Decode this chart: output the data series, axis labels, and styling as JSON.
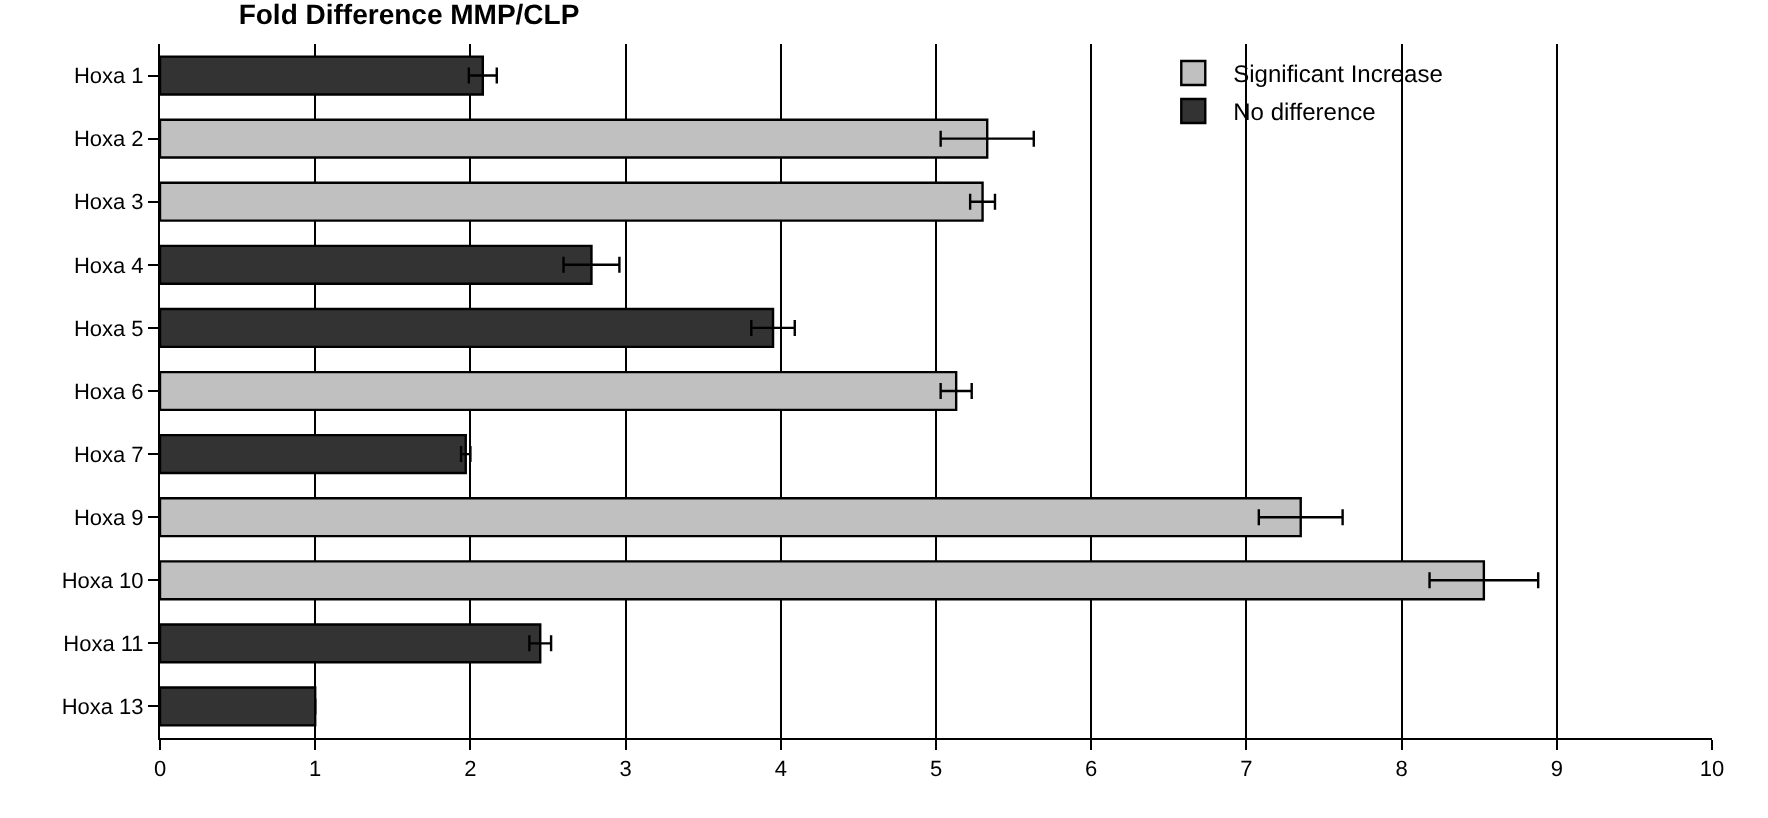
{
  "chart_data": {
    "type": "bar",
    "orientation": "horizontal",
    "title": "Fold Difference MMP/CLP",
    "categories": [
      "Hoxa 1",
      "Hoxa 2",
      "Hoxa 3",
      "Hoxa 4",
      "Hoxa 5",
      "Hoxa 6",
      "Hoxa 7",
      "Hoxa 9",
      "Hoxa 10",
      "Hoxa 11",
      "Hoxa 13"
    ],
    "series": [
      {
        "name": "Significant Increase",
        "color": "#c0c0c0",
        "values": [
          null,
          5.33,
          5.3,
          null,
          null,
          5.13,
          null,
          7.35,
          8.53,
          null,
          null
        ],
        "errors": [
          null,
          0.3,
          0.08,
          null,
          null,
          0.1,
          null,
          0.27,
          0.35,
          null,
          null
        ]
      },
      {
        "name": "No difference",
        "color": "#333333",
        "values": [
          2.08,
          null,
          null,
          2.78,
          3.95,
          null,
          1.97,
          null,
          null,
          2.45,
          1.0
        ],
        "errors": [
          0.09,
          null,
          null,
          0.18,
          0.14,
          null,
          0.03,
          null,
          null,
          0.07,
          null
        ]
      }
    ],
    "xlim": [
      0,
      10
    ],
    "xticks": [
      0,
      1,
      2,
      3,
      4,
      5,
      6,
      7,
      8,
      9,
      10
    ],
    "grid": "x",
    "legend": "top right"
  }
}
